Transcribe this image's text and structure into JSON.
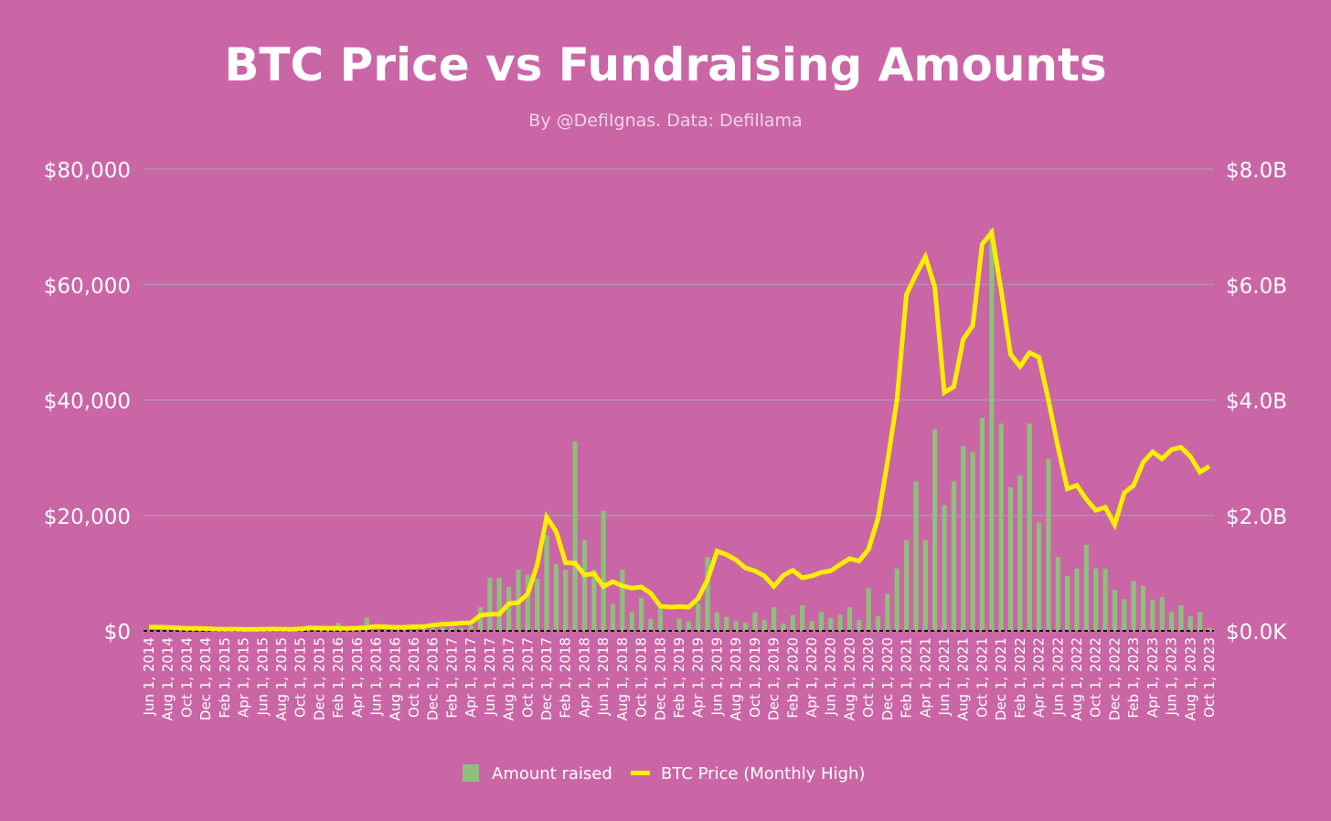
{
  "chart_data": {
    "type": "bar+line",
    "title": "BTC Price vs Fundraising Amounts",
    "subtitle": "By @DefiIgnas. Data: Defillama",
    "grid": true,
    "legend_placement": "bottom",
    "colors": {
      "background": "#CA66A6",
      "bars": "#8DC07A",
      "line": "#FFEE00",
      "grid": "#A99CB2",
      "text": "#FFFFFF"
    },
    "left_axis": {
      "ylim": [
        0,
        80000
      ],
      "tick_labels": [
        "$0",
        "$20,000",
        "$40,000",
        "$60,000",
        "$80,000"
      ]
    },
    "right_axis": {
      "ylim": [
        0,
        8.0
      ],
      "unit": "B",
      "tick_labels": [
        "$0.0K",
        "$2.0B",
        "$4.0B",
        "$6.0B",
        "$8.0B"
      ]
    },
    "categories": [
      "Jun 1, 2014",
      "Jul 1, 2014",
      "Aug 1, 2014",
      "Sep 1, 2014",
      "Oct 1, 2014",
      "Nov 1, 2014",
      "Dec 1, 2014",
      "Jan 1, 2015",
      "Feb 1, 2015",
      "Mar 1, 2015",
      "Apr 1, 2015",
      "May 1, 2015",
      "Jun 1, 2015",
      "Jul 1, 2015",
      "Aug 1, 2015",
      "Sep 1, 2015",
      "Oct 1, 2015",
      "Nov 1, 2015",
      "Dec 1, 2015",
      "Jan 1, 2016",
      "Feb 1, 2016",
      "Mar 1, 2016",
      "Apr 1, 2016",
      "May 1, 2016",
      "Jun 1, 2016",
      "Jul 1, 2016",
      "Aug 1, 2016",
      "Sep 1, 2016",
      "Oct 1, 2016",
      "Nov 1, 2016",
      "Dec 1, 2016",
      "Jan 1, 2017",
      "Feb 1, 2017",
      "Mar 1, 2017",
      "Apr 1, 2017",
      "May 1, 2017",
      "Jun 1, 2017",
      "Jul 1, 2017",
      "Aug 1, 2017",
      "Sep 1, 2017",
      "Oct 1, 2017",
      "Nov 1, 2017",
      "Dec 1, 2017",
      "Jan 1, 2018",
      "Feb 1, 2018",
      "Mar 1, 2018",
      "Apr 1, 2018",
      "May 1, 2018",
      "Jun 1, 2018",
      "Jul 1, 2018",
      "Aug 1, 2018",
      "Sep 1, 2018",
      "Oct 1, 2018",
      "Nov 1, 2018",
      "Dec 1, 2018",
      "Jan 1, 2019",
      "Feb 1, 2019",
      "Mar 1, 2019",
      "Apr 1, 2019",
      "May 1, 2019",
      "Jun 1, 2019",
      "Jul 1, 2019",
      "Aug 1, 2019",
      "Sep 1, 2019",
      "Oct 1, 2019",
      "Nov 1, 2019",
      "Dec 1, 2019",
      "Jan 1, 2020",
      "Feb 1, 2020",
      "Mar 1, 2020",
      "Apr 1, 2020",
      "May 1, 2020",
      "Jun 1, 2020",
      "Jul 1, 2020",
      "Aug 1, 2020",
      "Sep 1, 2020",
      "Oct 1, 2020",
      "Nov 1, 2020",
      "Dec 1, 2020",
      "Jan 1, 2021",
      "Feb 1, 2021",
      "Mar 1, 2021",
      "Apr 1, 2021",
      "May 1, 2021",
      "Jun 1, 2021",
      "Jul 1, 2021",
      "Aug 1, 2021",
      "Sep 1, 2021",
      "Oct 1, 2021",
      "Nov 1, 2021",
      "Dec 1, 2021",
      "Jan 1, 2022",
      "Feb 1, 2022",
      "Mar 1, 2022",
      "Apr 1, 2022",
      "May 1, 2022",
      "Jun 1, 2022",
      "Jul 1, 2022",
      "Aug 1, 2022",
      "Sep 1, 2022",
      "Oct 1, 2022",
      "Nov 1, 2022",
      "Dec 1, 2022",
      "Jan 1, 2023",
      "Feb 1, 2023",
      "Mar 1, 2023",
      "Apr 1, 2023",
      "May 1, 2023",
      "Jun 1, 2023",
      "Jul 1, 2023",
      "Aug 1, 2023",
      "Sep 1, 2023",
      "Oct 1, 2023"
    ],
    "series": [
      {
        "name": "Amount raised",
        "type": "bar",
        "axis": "right",
        "unit": "billion USD",
        "values": [
          0.01,
          0.01,
          0.01,
          0.01,
          0.01,
          0.01,
          0.01,
          0.01,
          0.01,
          0.01,
          0.01,
          0.01,
          0.01,
          0.01,
          0.02,
          0.01,
          0.02,
          0.02,
          0.02,
          0.03,
          0.14,
          0.03,
          0.02,
          0.23,
          0.03,
          0.02,
          0.02,
          0.03,
          0.03,
          0.04,
          0.05,
          0.06,
          0.06,
          0.05,
          0.09,
          0.41,
          0.92,
          0.92,
          0.76,
          1.06,
          0.97,
          0.9,
          1.66,
          1.16,
          1.06,
          3.28,
          1.57,
          1.06,
          2.08,
          0.46,
          1.06,
          0.32,
          0.57,
          0.21,
          0.4,
          0.02,
          0.21,
          0.16,
          0.48,
          1.28,
          0.32,
          0.24,
          0.17,
          0.14,
          0.32,
          0.19,
          0.41,
          0.13,
          0.27,
          0.44,
          0.17,
          0.33,
          0.22,
          0.28,
          0.41,
          0.19,
          0.74,
          0.25,
          0.64,
          1.08,
          1.57,
          2.59,
          1.57,
          3.49,
          2.18,
          2.59,
          3.2,
          3.1,
          3.69,
          6.97,
          3.59,
          2.49,
          2.69,
          3.59,
          1.88,
          2.98,
          1.28,
          0.95,
          1.08,
          1.49,
          1.08,
          1.08,
          0.71,
          0.55,
          0.86,
          0.78,
          0.53,
          0.58,
          0.33,
          0.44,
          0.25,
          0.33,
          0.05
        ]
      },
      {
        "name": "BTC Price (Monthly High)",
        "type": "line",
        "axis": "left",
        "unit": "USD",
        "values": [
          680,
          650,
          600,
          500,
          420,
          450,
          400,
          320,
          290,
          300,
          260,
          250,
          270,
          315,
          300,
          250,
          330,
          500,
          470,
          460,
          440,
          430,
          470,
          550,
          780,
          700,
          620,
          630,
          720,
          750,
          980,
          1150,
          1200,
          1350,
          1400,
          2700,
          2900,
          2900,
          4700,
          4900,
          6400,
          11400,
          19700,
          17200,
          11800,
          11700,
          9700,
          9900,
          7700,
          8500,
          7800,
          7400,
          7600,
          6500,
          4300,
          4100,
          4200,
          4100,
          5600,
          8900,
          13800,
          13200,
          12300,
          10900,
          10400,
          9500,
          7700,
          9600,
          10500,
          9200,
          9500,
          10100,
          10400,
          11500,
          12500,
          12100,
          14100,
          19500,
          29300,
          40000,
          58300,
          61700,
          64800,
          59600,
          41300,
          42300,
          50500,
          52900,
          67000,
          69000,
          59100,
          47900,
          45800,
          48200,
          47400,
          40000,
          31900,
          24600,
          25200,
          22800,
          20900,
          21400,
          18400,
          23900,
          25200,
          29200,
          31000,
          29800,
          31400,
          31800,
          30200,
          27500,
          28500
        ]
      }
    ]
  }
}
